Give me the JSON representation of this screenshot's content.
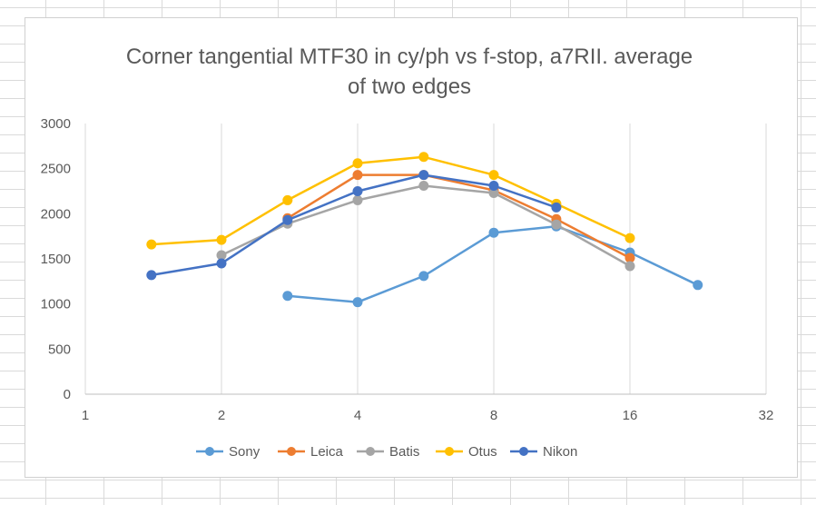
{
  "chart_data": {
    "type": "line",
    "title_lines": [
      "Corner tangential MTF30 in cy/ph vs f-stop, a7RII. average",
      "of two edges"
    ],
    "xlabel": "",
    "ylabel": "",
    "x_scale": "log2",
    "xlim": [
      1,
      32
    ],
    "x_ticks": [
      1,
      2,
      4,
      8,
      16,
      32
    ],
    "ylim": [
      0,
      3000
    ],
    "y_ticks": [
      0,
      500,
      1000,
      1500,
      2000,
      2500,
      3000
    ],
    "grid": "vertical",
    "legend_position": "bottom",
    "series": [
      {
        "name": "Sony",
        "color": "#5b9bd5",
        "x": [
          2.8,
          4,
          5.6,
          8,
          11,
          16,
          22.6
        ],
        "y": [
          1090,
          1020,
          1310,
          1790,
          1860,
          1570,
          1210
        ]
      },
      {
        "name": "Leica",
        "color": "#ed7d31",
        "x": [
          2.8,
          4,
          5.6,
          8,
          11,
          16
        ],
        "y": [
          1950,
          2430,
          2430,
          2260,
          1940,
          1510
        ]
      },
      {
        "name": "Batis",
        "color": "#a5a5a5",
        "x": [
          2,
          2.8,
          4,
          5.6,
          8,
          11,
          16
        ],
        "y": [
          1540,
          1890,
          2150,
          2310,
          2230,
          1880,
          1420
        ]
      },
      {
        "name": "Otus",
        "color": "#ffc000",
        "x": [
          1.4,
          2,
          2.8,
          4,
          5.6,
          8,
          11,
          16
        ],
        "y": [
          1660,
          1710,
          2150,
          2560,
          2630,
          2430,
          2110,
          1730
        ]
      },
      {
        "name": "Nikon",
        "color": "#4472c4",
        "x": [
          1.4,
          2,
          2.8,
          4,
          5.6,
          8,
          11
        ],
        "y": [
          1320,
          1450,
          1930,
          2250,
          2430,
          2310,
          2070
        ]
      }
    ]
  }
}
